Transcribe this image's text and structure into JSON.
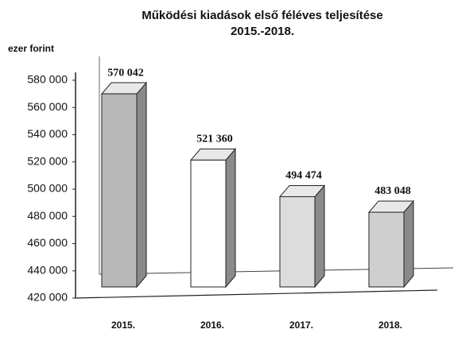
{
  "chart_data": {
    "type": "bar3d",
    "title": "Működési kiadások  első féléves teljesítése",
    "subtitle": "2015.-2018.",
    "y_label": "ezer forint",
    "categories": [
      "2015.",
      "2016.",
      "2017.",
      "2018."
    ],
    "values": [
      570042,
      521360,
      494474,
      483048
    ],
    "value_labels": [
      "570 042",
      "521 360",
      "494 474",
      "483 048"
    ],
    "colors": [
      "#b8b8b8",
      "#ffffff",
      "#dcdcdc",
      "#cfcfcf"
    ],
    "side_color": "#8a8a8a",
    "ylim": [
      420000,
      580000
    ],
    "yticks": [
      {
        "value": 420000,
        "label": "420 000"
      },
      {
        "value": 440000,
        "label": "440 000"
      },
      {
        "value": 460000,
        "label": "460 000"
      },
      {
        "value": 480000,
        "label": "480 000"
      },
      {
        "value": 500000,
        "label": "500 000"
      },
      {
        "value": 520000,
        "label": "520 000"
      },
      {
        "value": 540000,
        "label": "540 000"
      },
      {
        "value": 560000,
        "label": "560 000"
      },
      {
        "value": 580000,
        "label": "580 000"
      }
    ],
    "grid": false
  }
}
